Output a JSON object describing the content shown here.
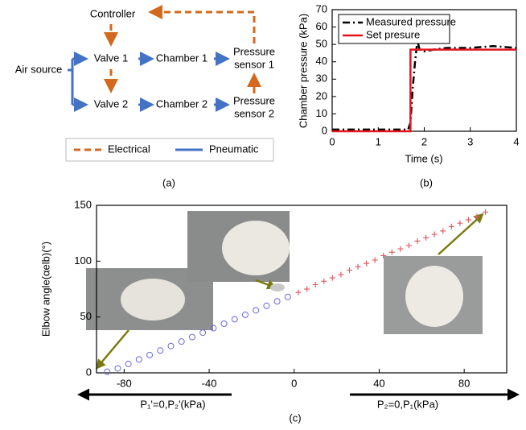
{
  "diagram": {
    "nodes": {
      "controller": "Controller",
      "air_source": "Air source",
      "valve1": "Valve 1",
      "valve2": "Valve 2",
      "chamber1": "Chamber 1",
      "chamber2": "Chamber 2",
      "sensor1": [
        "Pressure",
        "sensor 1"
      ],
      "sensor2": [
        "Pressure",
        "sensor 2"
      ]
    },
    "legend": {
      "electrical": "Electrical",
      "pneumatic": "Pneumatic"
    },
    "panel_label": "(a)"
  },
  "chart_data": [
    {
      "type": "line",
      "panel_label": "(b)",
      "xlabel": "Time (s)",
      "ylabel": "Chamber pressure (kPa)",
      "xlim": [
        0,
        4
      ],
      "xticks": [
        0,
        1,
        2,
        3,
        4
      ],
      "ylim": [
        0,
        70
      ],
      "yticks": [
        0,
        10,
        20,
        30,
        40,
        50,
        60,
        70
      ],
      "legend": "upper left",
      "series": [
        {
          "name": "Measured pressure",
          "color": "#000000",
          "linestyle": "dashdot",
          "x": [
            0,
            0.5,
            1,
            1.5,
            1.65,
            1.7,
            1.75,
            1.8,
            1.85,
            1.9,
            2,
            2.2,
            2.5,
            3,
            3.5,
            4
          ],
          "values": [
            1,
            1,
            1,
            1,
            1,
            5,
            25,
            40,
            52,
            47,
            46,
            47,
            48,
            48,
            49,
            48
          ]
        },
        {
          "name": "Set presure",
          "color": "#e8141c",
          "linestyle": "solid",
          "x": [
            0,
            1.7,
            1.7,
            4
          ],
          "values": [
            0,
            0,
            47,
            47
          ]
        }
      ]
    },
    {
      "type": "scatter",
      "panel_label": "(c)",
      "ylabel": "Elbow angle(αelb)(°)",
      "xlim": [
        -93,
        100
      ],
      "xticks": [
        -80,
        -40,
        0,
        40,
        80
      ],
      "ylim": [
        0,
        150
      ],
      "yticks": [
        0,
        50,
        100,
        150
      ],
      "arrow_labels": [
        "P₁'=0,P₂'(kPa)",
        "P₂=0,P₁(kPa)"
      ],
      "series": [
        {
          "color": "#6a6ad8",
          "marker": "circle",
          "x": [
            -88,
            -83,
            -78,
            -73,
            -68,
            -63,
            -58,
            -53,
            -48,
            -43,
            -38,
            -33,
            -28,
            -23,
            -18,
            -13,
            -8,
            -3
          ],
          "values": [
            1,
            4,
            8,
            12,
            16,
            20,
            24,
            28,
            32,
            36,
            40,
            44,
            48,
            52,
            56,
            60,
            64,
            68
          ]
        },
        {
          "color": "#e0606a",
          "marker": "plus",
          "x": [
            2,
            6,
            10,
            14,
            18,
            22,
            26,
            30,
            34,
            38,
            42,
            46,
            50,
            54,
            58,
            62,
            66,
            70,
            74,
            78,
            82,
            86,
            90
          ],
          "values": [
            72,
            75,
            79,
            82,
            85,
            88,
            92,
            95,
            98,
            101,
            105,
            108,
            111,
            114,
            118,
            121,
            124,
            127,
            131,
            134,
            137,
            140,
            144
          ]
        }
      ]
    }
  ]
}
